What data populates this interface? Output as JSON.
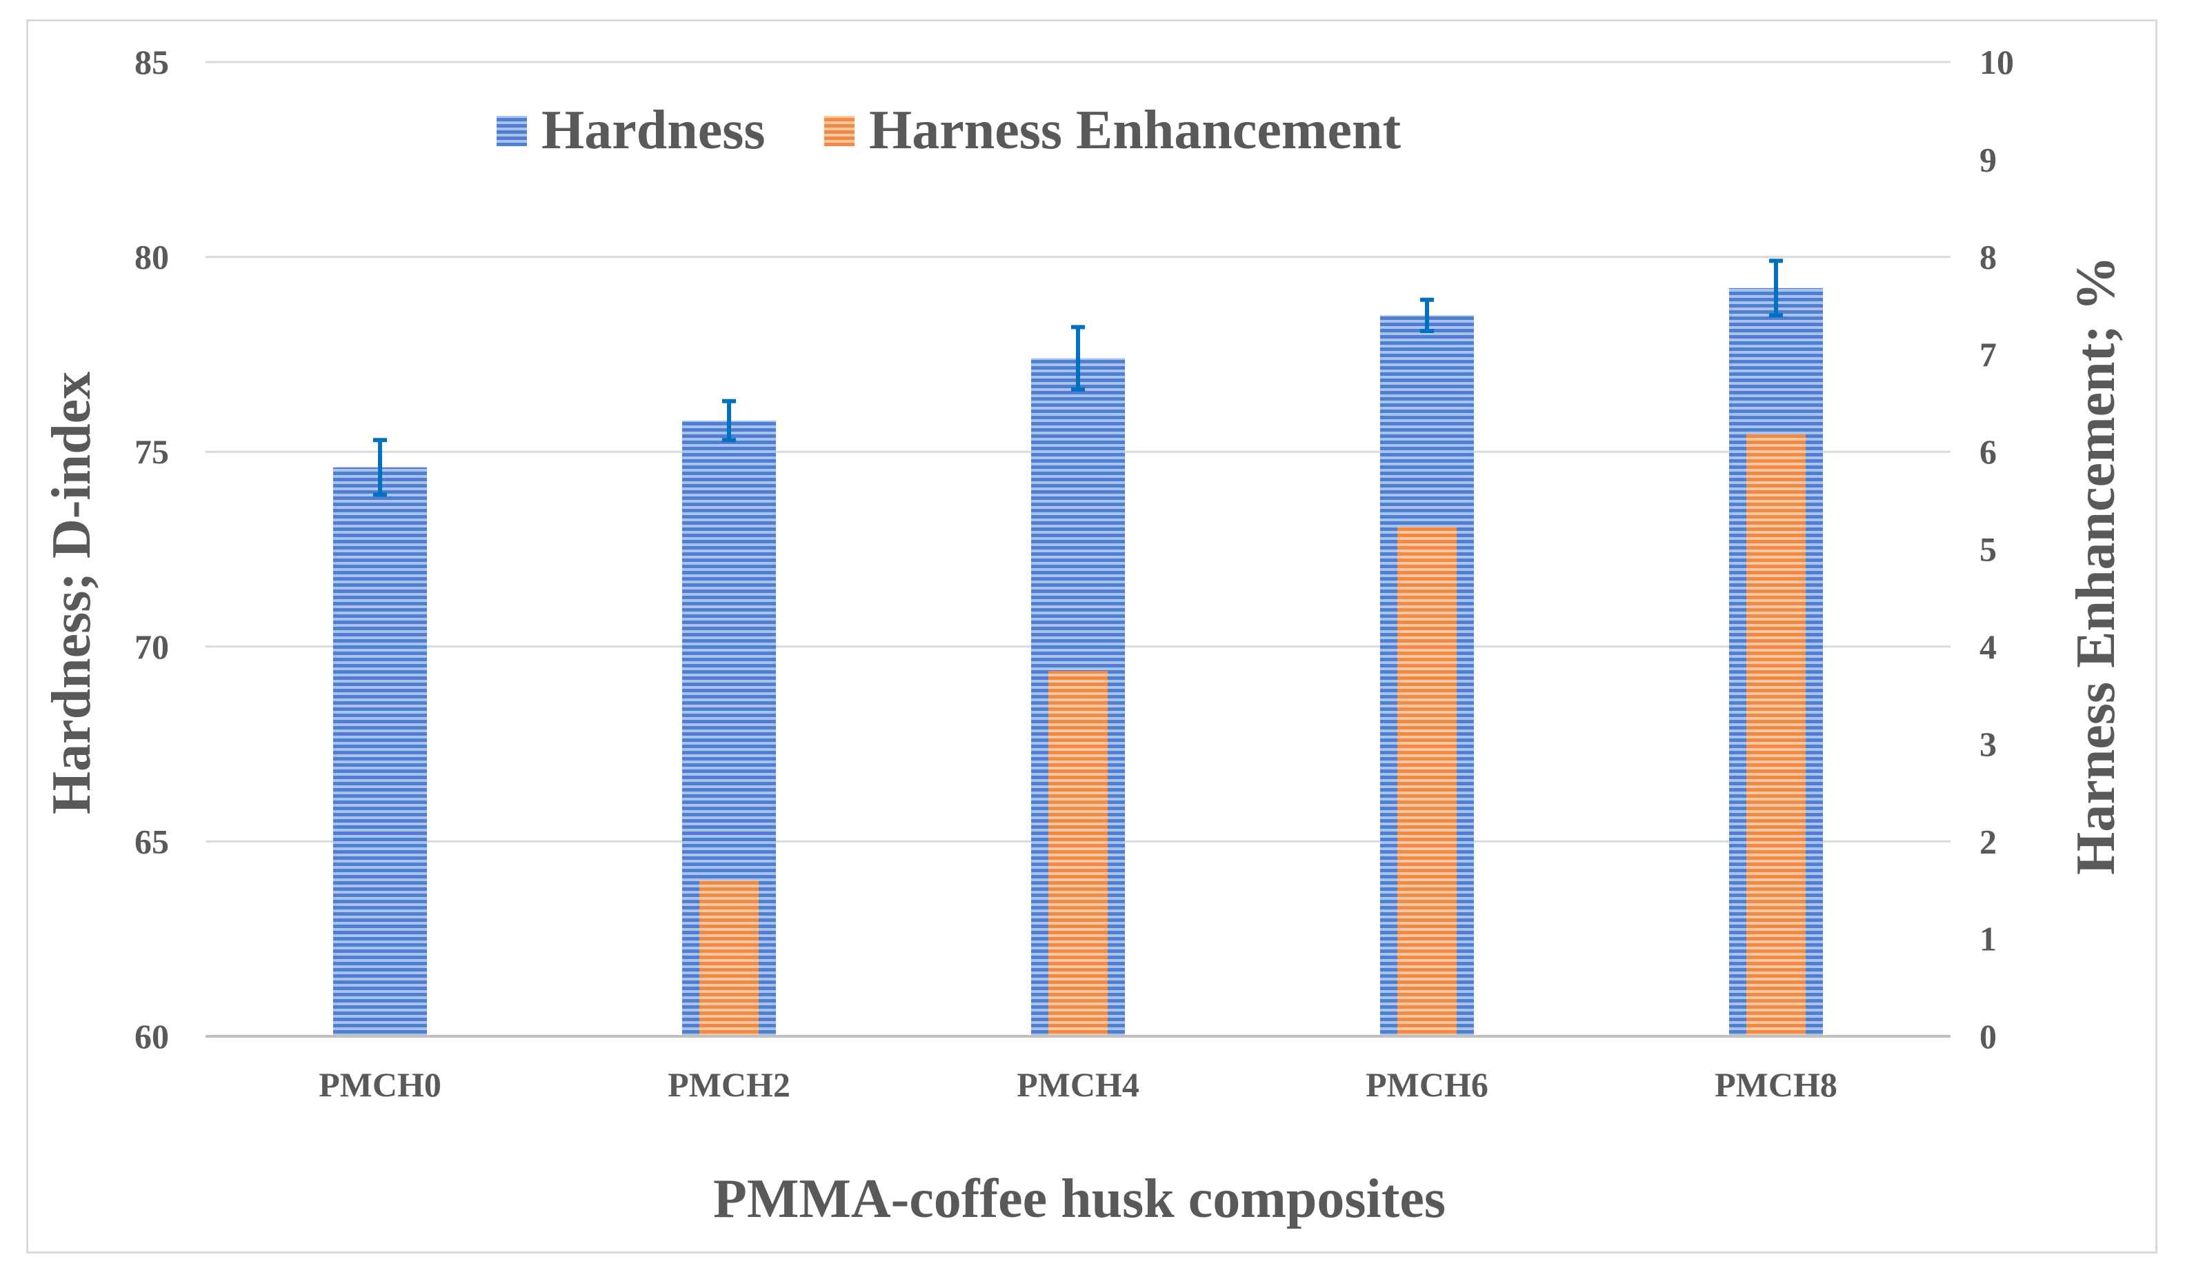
{
  "chart_data": {
    "type": "bar",
    "categories": [
      "PMCH0",
      "PMCH2",
      "PMCH4",
      "PMCH6",
      "PMCH8"
    ],
    "series": [
      {
        "name": "Hardness",
        "axis": "left",
        "values": [
          74.6,
          75.8,
          77.4,
          78.5,
          79.2
        ],
        "error": [
          0.7,
          0.5,
          0.8,
          0.4,
          0.7
        ],
        "color": "#4472c4"
      },
      {
        "name": "Harness Enhancement",
        "axis": "right",
        "values": [
          0,
          1.6,
          3.75,
          5.23,
          6.18
        ],
        "color": "#ed7d31"
      }
    ],
    "xlabel": "PMMA-coffee husk composites",
    "ylabel": "Hardness; D-index",
    "y2label": "Harness Enhancement; %",
    "ylim": [
      60,
      85
    ],
    "y2lim": [
      0,
      10
    ],
    "yticks": [
      "60",
      "65",
      "70",
      "75",
      "80",
      "85"
    ],
    "y2ticks": [
      "0",
      "1",
      "2",
      "3",
      "4",
      "5",
      "6",
      "7",
      "8",
      "9",
      "10"
    ],
    "grid": true,
    "legend_position": "top",
    "error_bar_color": "#0070c0"
  }
}
